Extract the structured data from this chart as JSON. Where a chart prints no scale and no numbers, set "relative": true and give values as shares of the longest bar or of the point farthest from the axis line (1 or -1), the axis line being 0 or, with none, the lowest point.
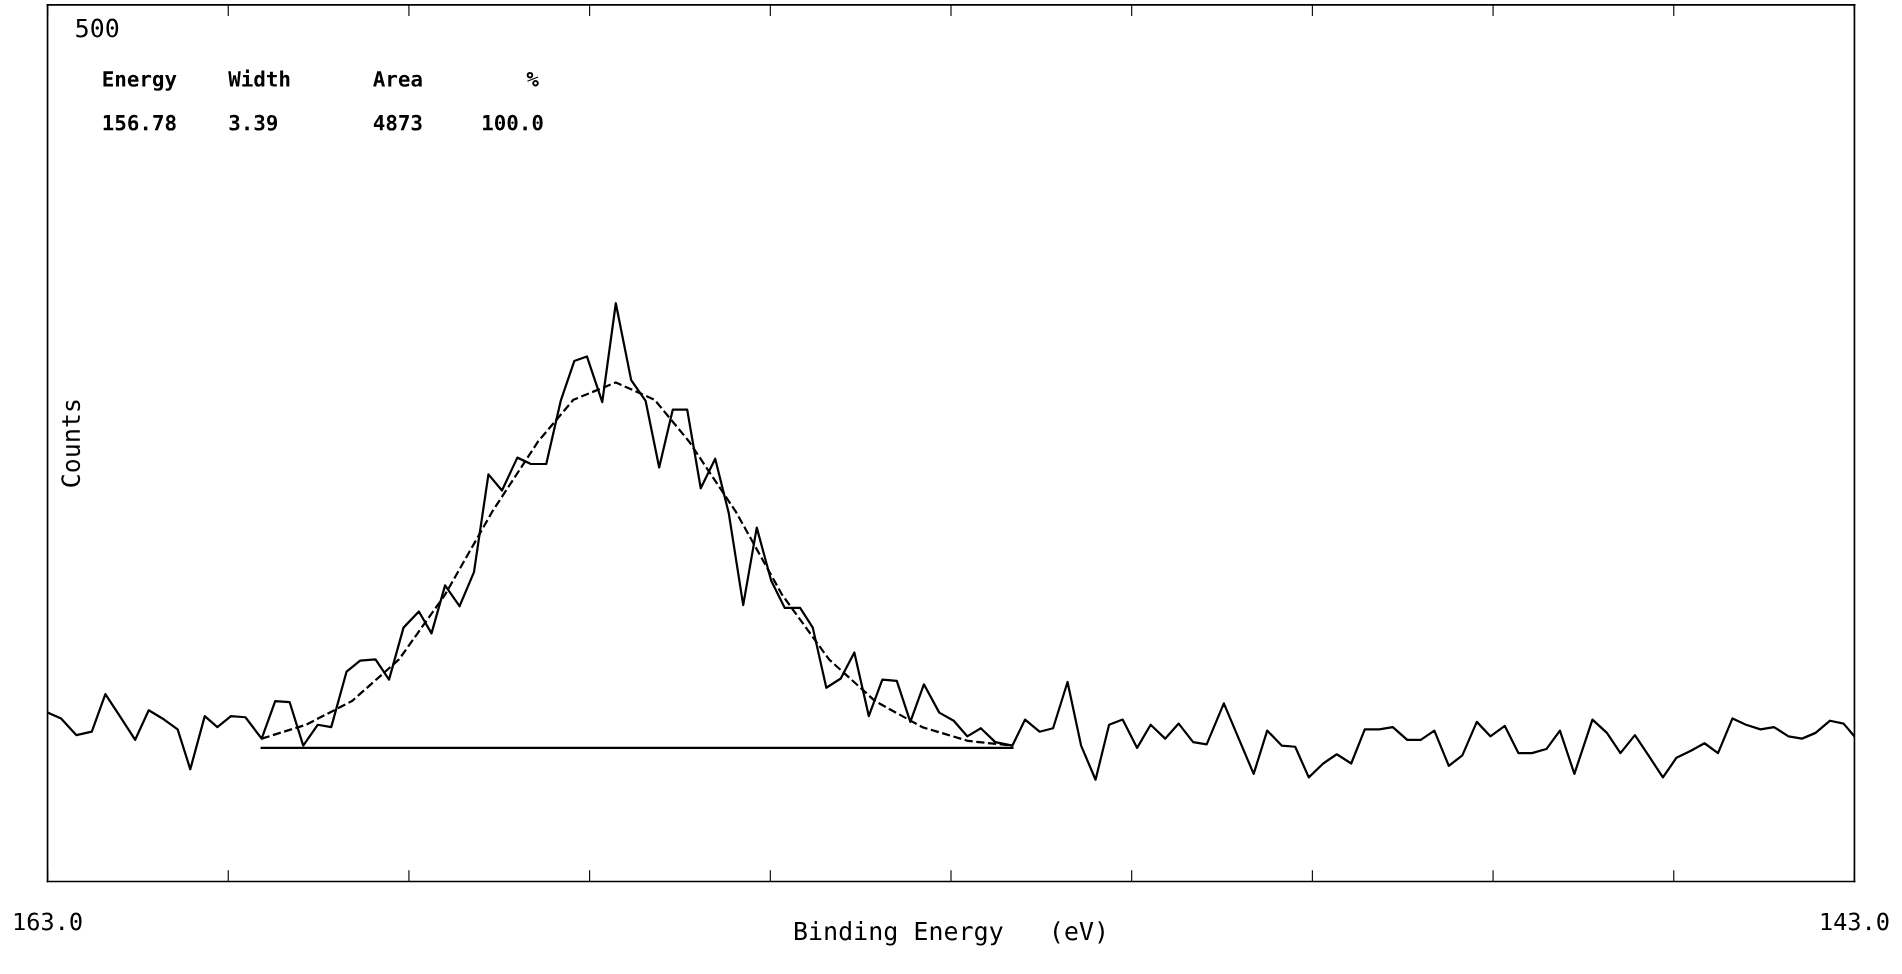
{
  "chart_data": {
    "type": "line",
    "relative": true,
    "xlabel": "Binding Energy   (eV)",
    "ylabel": "Counts",
    "xlim": [
      163,
      143
    ],
    "xticks": [
      {
        "value": 163,
        "label": "163.0"
      },
      {
        "value": 161,
        "label": null
      },
      {
        "value": 159,
        "label": null
      },
      {
        "value": 157,
        "label": null
      },
      {
        "value": 155,
        "label": null
      },
      {
        "value": 153,
        "label": null
      },
      {
        "value": 151,
        "label": null
      },
      {
        "value": 149,
        "label": null
      },
      {
        "value": 147,
        "label": null
      },
      {
        "value": 145,
        "label": null
      },
      {
        "value": 143,
        "label": "143.0"
      }
    ],
    "grid": false,
    "annotations": [
      "500",
      "Energy",
      "Width",
      "Area",
      "%",
      "156.78",
      "3.39",
      "4873",
      "100.0"
    ],
    "series": [
      {
        "color": "#000000",
        "line_style": "solid",
        "x": [
          163.0,
          162.85,
          162.68,
          162.51,
          162.36,
          162.2,
          162.03,
          161.88,
          161.71,
          161.56,
          161.42,
          161.26,
          161.12,
          160.97,
          160.81,
          160.63,
          160.48,
          160.32,
          160.17,
          160.01,
          159.86,
          159.69,
          159.54,
          159.37,
          159.22,
          159.06,
          158.89,
          158.75,
          158.6,
          158.44,
          158.28,
          158.12,
          157.97,
          157.8,
          157.65,
          157.48,
          157.32,
          157.17,
          157.03,
          156.86,
          156.71,
          156.54,
          156.38,
          156.23,
          156.08,
          155.92,
          155.77,
          155.61,
          155.46,
          155.3,
          155.15,
          154.99,
          154.84,
          154.67,
          154.53,
          154.38,
          154.22,
          154.07,
          153.91,
          153.76,
          153.6,
          153.45,
          153.3,
          153.13,
          152.97,
          152.82,
          152.67,
          152.51,
          152.32,
          152.18,
          152.02,
          151.87,
          151.71,
          151.56,
          151.4,
          151.25,
          151.1,
          150.94,
          150.79,
          150.63,
          150.48,
          150.32,
          150.17,
          149.98,
          149.65,
          149.5,
          149.34,
          149.19,
          149.04,
          148.88,
          148.73,
          148.57,
          148.42,
          148.26,
          148.11,
          147.95,
          147.8,
          147.65,
          147.49,
          147.34,
          147.18,
          147.03,
          146.87,
          146.72,
          146.57,
          146.41,
          146.26,
          146.1,
          145.9,
          145.74,
          145.59,
          145.43,
          145.28,
          145.12,
          144.97,
          144.81,
          144.66,
          144.51,
          144.35,
          144.2,
          144.04,
          143.89,
          143.73,
          143.58,
          143.43,
          143.27,
          143.12,
          143.0
        ],
        "values": [
          0.292,
          0.282,
          0.253,
          0.259,
          0.324,
          0.286,
          0.245,
          0.296,
          0.28,
          0.263,
          0.194,
          0.286,
          0.267,
          0.286,
          0.284,
          0.247,
          0.312,
          0.31,
          0.235,
          0.271,
          0.267,
          0.363,
          0.382,
          0.384,
          0.349,
          0.439,
          0.467,
          0.429,
          0.512,
          0.476,
          0.535,
          0.704,
          0.676,
          0.733,
          0.722,
          0.722,
          0.831,
          0.9,
          0.908,
          0.829,
          1.0,
          0.867,
          0.831,
          0.716,
          0.816,
          0.816,
          0.68,
          0.731,
          0.637,
          0.478,
          0.612,
          0.52,
          0.473,
          0.473,
          0.439,
          0.335,
          0.351,
          0.396,
          0.286,
          0.349,
          0.347,
          0.276,
          0.341,
          0.292,
          0.278,
          0.251,
          0.265,
          0.241,
          0.235,
          0.28,
          0.259,
          0.265,
          0.345,
          0.235,
          0.176,
          0.271,
          0.28,
          0.231,
          0.271,
          0.247,
          0.273,
          0.241,
          0.237,
          0.308,
          0.186,
          0.261,
          0.235,
          0.233,
          0.18,
          0.204,
          0.22,
          0.204,
          0.263,
          0.263,
          0.267,
          0.245,
          0.245,
          0.261,
          0.2,
          0.218,
          0.276,
          0.251,
          0.269,
          0.222,
          0.222,
          0.229,
          0.261,
          0.186,
          0.28,
          0.257,
          0.222,
          0.253,
          0.218,
          0.18,
          0.214,
          0.226,
          0.239,
          0.222,
          0.282,
          0.271,
          0.263,
          0.267,
          0.251,
          0.247,
          0.257,
          0.278,
          0.273,
          0.251
        ]
      },
      {
        "color": "#000000",
        "line_style": "dashed",
        "x": [
          160.63,
          160.14,
          159.63,
          159.11,
          158.6,
          158.08,
          157.57,
          157.18,
          156.71,
          156.28,
          155.9,
          155.38,
          154.87,
          154.35,
          153.84,
          153.32,
          152.81,
          152.32
        ],
        "values": [
          0.247,
          0.271,
          0.312,
          0.384,
          0.496,
          0.639,
          0.761,
          0.833,
          0.863,
          0.833,
          0.761,
          0.639,
          0.496,
          0.384,
          0.312,
          0.267,
          0.243,
          0.235
        ]
      },
      {
        "color": "#000000",
        "line_style": "solid",
        "x": [
          160.63,
          152.32
        ],
        "values": [
          0.231,
          0.231
        ]
      }
    ]
  }
}
